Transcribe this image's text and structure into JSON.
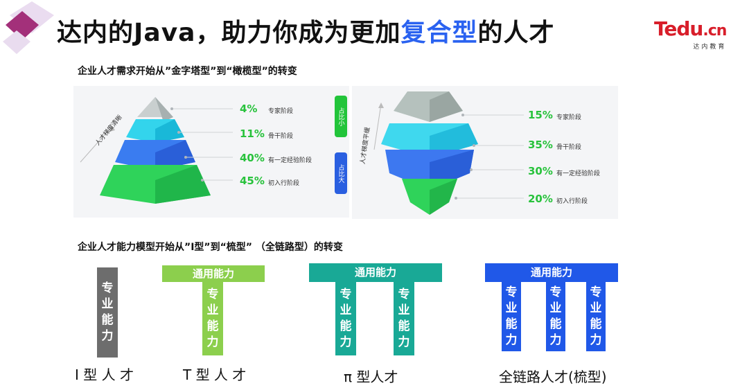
{
  "header": {
    "title_part1": "达内的Java，助力你成为更加",
    "title_highlight": "复合型",
    "title_part2": "的人才",
    "logo_brand": "Tedu",
    "logo_domain": ".cn",
    "logo_sub": "达内教育"
  },
  "section1": {
    "title": "企业人才需求开始从”金字塔型”到“橄榄型”的转变",
    "pyramid": {
      "axis_label": "人才梯度清晰",
      "rows": [
        {
          "pct": "4%",
          "stage": "专家阶段"
        },
        {
          "pct": "11%",
          "stage": "骨干阶段"
        },
        {
          "pct": "40%",
          "stage": "有一定经验阶段"
        },
        {
          "pct": "45%",
          "stage": "初入行阶段"
        }
      ]
    },
    "pills": {
      "small": "占比小",
      "large": "占比大"
    },
    "olive": {
      "axis_label": "人才梯度平缓",
      "rows": [
        {
          "pct": "15%",
          "stage": "专家阶段"
        },
        {
          "pct": "35%",
          "stage": "骨干阶段"
        },
        {
          "pct": "30%",
          "stage": "有一定经验阶段"
        },
        {
          "pct": "20%",
          "stage": "初入行阶段"
        }
      ]
    }
  },
  "section2": {
    "title": "企业人才能力模型开始从”I型”到“梳型”  （全链路型）的转变",
    "general_label": "通用能力",
    "pro_label": "专业能力",
    "types": {
      "i": "I 型 人 才",
      "t": "T 型 人 才",
      "pi": "π 型人才",
      "full": "全链路人才(梳型)"
    }
  },
  "colors": {
    "highlight": "#2a62f0",
    "pct_green": "#28c23c",
    "i_gray": "#6d6d6d",
    "t_green": "#8ccf4d",
    "pi_teal": "#19a996",
    "full_blue": "#2058e8"
  }
}
